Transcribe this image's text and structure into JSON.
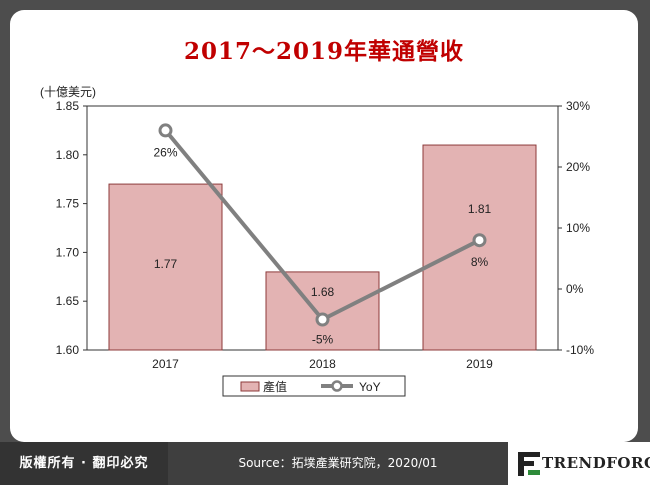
{
  "title": "2017～2019年華通營收",
  "footer": {
    "copyright": "版權所有 · 翻印必究",
    "source": "Source：拓墣產業研究院，2020/01",
    "logo_text": "TRENDFORCE"
  },
  "colors": {
    "title": "#c00000",
    "bar_fill": "#e3b3b3",
    "bar_stroke": "#8c3a3a",
    "line": "#808080"
  },
  "chart_data": {
    "type": "bar",
    "categories": [
      "2017",
      "2018",
      "2019"
    ],
    "unit_label": "(十億美元)",
    "series": [
      {
        "name": "產值",
        "type": "bar",
        "axis": "left",
        "values": [
          1.77,
          1.68,
          1.81
        ],
        "labels": [
          "1.77",
          "1.68",
          "1.81"
        ]
      },
      {
        "name": "YoY",
        "type": "line",
        "axis": "right",
        "values": [
          26,
          -5,
          8
        ],
        "labels": [
          "26%",
          "-5%",
          "8%"
        ]
      }
    ],
    "y_left": {
      "min": 1.6,
      "max": 1.85,
      "ticks": [
        "1.60",
        "1.65",
        "1.70",
        "1.75",
        "1.80",
        "1.85"
      ]
    },
    "y_right": {
      "min": -10,
      "max": 30,
      "ticks": [
        "-10%",
        "0%",
        "10%",
        "20%",
        "30%"
      ]
    },
    "legend_position": "bottom",
    "grid": false
  }
}
